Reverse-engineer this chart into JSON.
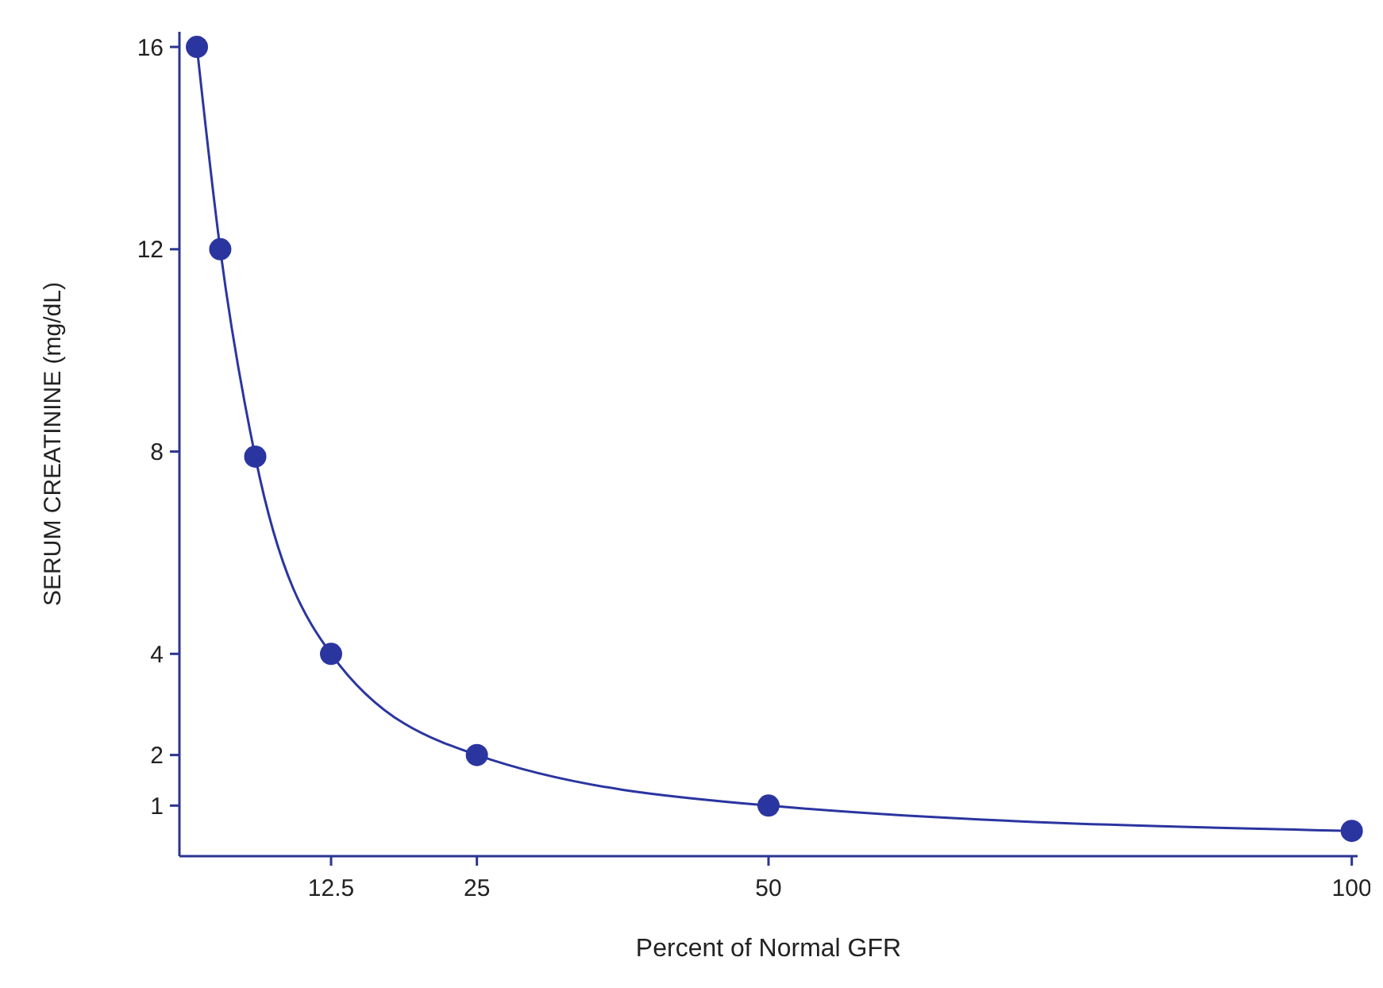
{
  "chart_data": {
    "type": "line",
    "xlabel": "Percent of Normal GFR",
    "ylabel": "SERUM CREATININE (mg/dL)",
    "x": [
      1,
      3,
      6,
      12.5,
      25,
      50,
      100
    ],
    "series": [
      {
        "color": "#2b35a0",
        "values": [
          16,
          12,
          7.9,
          4,
          2,
          1,
          0.5
        ]
      }
    ],
    "xlim": [
      -0.5,
      100.5
    ],
    "xticks": [
      12.5,
      25,
      50,
      100
    ],
    "ylim": [
      0,
      16.3
    ],
    "yticks": [
      1,
      2,
      4,
      8,
      12,
      16
    ],
    "marker": "circle",
    "line_style": "solid"
  }
}
